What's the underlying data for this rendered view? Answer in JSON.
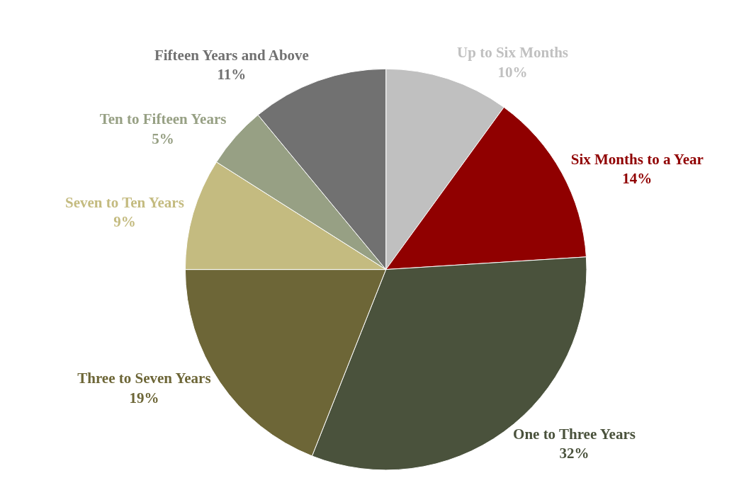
{
  "chart_data": {
    "type": "pie",
    "categories": [
      "Up to Six Months",
      "Six Months to a Year",
      "One to Three Years",
      "Three to Seven Years",
      "Seven to Ten Years",
      "Ten to Fifteen Years",
      "Fifteen Years and Above"
    ],
    "values": [
      10,
      14,
      32,
      19,
      9,
      5,
      11
    ],
    "value_labels": [
      "10%",
      "14%",
      "32%",
      "19%",
      "9%",
      "5%",
      "11%"
    ],
    "colors": [
      "#c0c0c0",
      "#900000",
      "#4a523c",
      "#6d6637",
      "#c4bb80",
      "#97a084",
      "#717171"
    ],
    "legend": false
  }
}
